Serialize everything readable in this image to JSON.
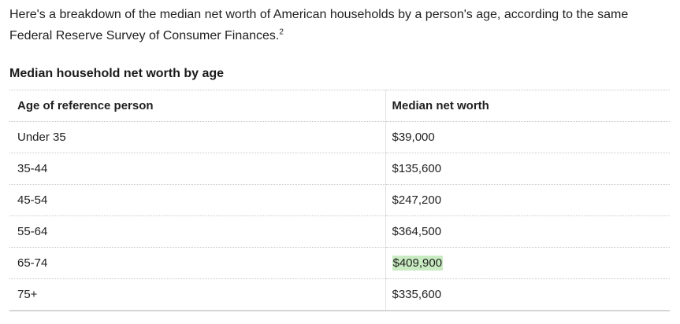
{
  "intro": {
    "text": "Here's a breakdown of the median net worth of American households by a person's age, according to the same Federal Reserve Survey of Consumer Finances.",
    "footnote": "2"
  },
  "table": {
    "title": "Median household net worth by age",
    "headers": [
      "Age of reference person",
      "Median net worth"
    ],
    "rows": [
      {
        "age": "Under 35",
        "worth": "$39,000"
      },
      {
        "age": "35-44",
        "worth": "$135,600"
      },
      {
        "age": "45-54",
        "worth": "$247,200"
      },
      {
        "age": "55-64",
        "worth": "$364,500"
      },
      {
        "age": "65-74",
        "worth": "$409,900"
      },
      {
        "age": "75+",
        "worth": "$335,600"
      }
    ],
    "highlight_color": "#c9ebc2"
  }
}
